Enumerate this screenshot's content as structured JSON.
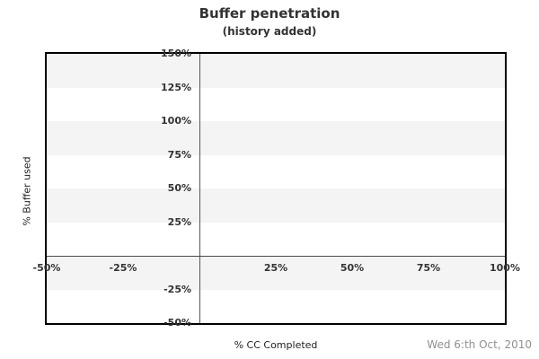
{
  "title": "Buffer penetration",
  "subtitle": "(history added)",
  "footer": {
    "date_label": "Wed 6:th Oct, 2010"
  },
  "colors": {
    "band_gray": "#f4f4f4",
    "band_white": "#ffffff",
    "plot_border": "#000000",
    "axis_line": "#4a4a4a",
    "tick_text": "#333333",
    "date_text": "#909090"
  },
  "chart_data": {
    "type": "line",
    "title": "Buffer penetration",
    "subtitle": "(history added)",
    "xlabel": "% CC Completed",
    "ylabel": "% Buffer used",
    "xlim": [
      -50,
      100
    ],
    "ylim": [
      -50,
      150
    ],
    "x_ticks": [
      -50,
      -25,
      25,
      50,
      75,
      100
    ],
    "x_tick_labels": [
      "-50%",
      "-25%",
      "25%",
      "50%",
      "75%",
      "100%"
    ],
    "y_ticks": [
      150,
      125,
      100,
      75,
      50,
      25,
      -25,
      -50
    ],
    "y_tick_labels": [
      "150%",
      "125%",
      "100%",
      "75%",
      "50%",
      "25%",
      "-25%",
      "-50%"
    ],
    "band_step": 25,
    "grid": "alternating-horizontal-bands-starting-gray-at-top",
    "zero_axis_lines": {
      "vertical_at_x": 0,
      "horizontal_at_y": 0
    },
    "legend": "none",
    "series": []
  }
}
